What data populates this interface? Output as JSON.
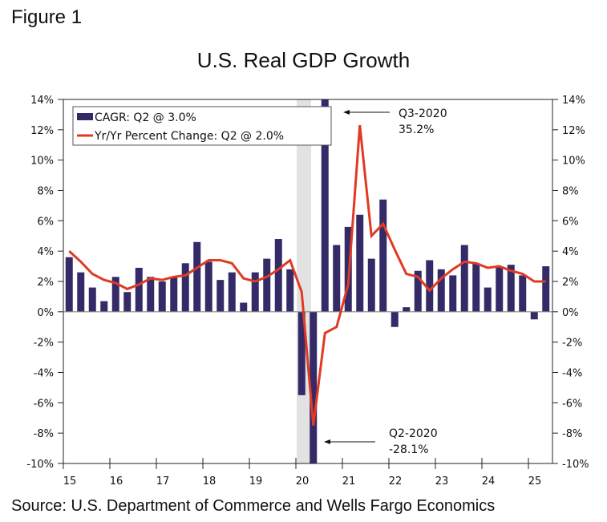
{
  "figure_label": "Figure 1",
  "source": "Source: U.S. Department of Commerce and Wells Fargo Economics",
  "colors": {
    "bar": "#342a68",
    "line": "#e03a24",
    "recession": "#e2e2e2",
    "axis": "#222222"
  },
  "chart_data": {
    "type": "bar",
    "title": "U.S. Real GDP Growth",
    "xlabel": "",
    "ylabel": "",
    "ylim": [
      -10,
      14
    ],
    "yticks": [
      14,
      12,
      10,
      8,
      6,
      4,
      2,
      0,
      -2,
      -4,
      -6,
      -8,
      -10
    ],
    "ytick_labels": [
      "14%",
      "12%",
      "10%",
      "8%",
      "6%",
      "4%",
      "2%",
      "0%",
      "-2%",
      "-4%",
      "-6%",
      "-8%",
      "-10%"
    ],
    "secondary_y": true,
    "xtick_labels": [
      "15",
      "16",
      "17",
      "18",
      "19",
      "20",
      "21",
      "22",
      "23",
      "24",
      "25"
    ],
    "grid": false,
    "legend_position": "top-left",
    "recession_shading": {
      "start": "2020Q1",
      "end": "2020Q2"
    },
    "categories": [
      "2015Q1",
      "2015Q2",
      "2015Q3",
      "2015Q4",
      "2016Q1",
      "2016Q2",
      "2016Q3",
      "2016Q4",
      "2017Q1",
      "2017Q2",
      "2017Q3",
      "2017Q4",
      "2018Q1",
      "2018Q2",
      "2018Q3",
      "2018Q4",
      "2019Q1",
      "2019Q2",
      "2019Q3",
      "2019Q4",
      "2020Q1",
      "2020Q2",
      "2020Q3",
      "2020Q4",
      "2021Q1",
      "2021Q2",
      "2021Q3",
      "2021Q4",
      "2022Q1",
      "2022Q2",
      "2022Q3",
      "2022Q4",
      "2023Q1",
      "2023Q2",
      "2023Q3",
      "2023Q4",
      "2024Q1",
      "2024Q2",
      "2024Q3",
      "2024Q4",
      "2025Q1",
      "2025Q2"
    ],
    "series": [
      {
        "name": "CAGR: Q2 @ 3.0%",
        "type": "bar",
        "values": [
          3.6,
          2.6,
          1.6,
          0.7,
          2.3,
          1.3,
          2.9,
          2.3,
          2.0,
          2.3,
          3.2,
          4.6,
          3.3,
          2.1,
          2.6,
          0.6,
          2.6,
          3.5,
          4.8,
          2.8,
          -5.5,
          -28.1,
          35.2,
          4.4,
          5.6,
          6.4,
          3.5,
          7.4,
          -1.0,
          0.3,
          2.7,
          3.4,
          2.8,
          2.4,
          4.4,
          3.2,
          1.6,
          3.0,
          3.1,
          2.4,
          -0.5,
          3.0
        ]
      },
      {
        "name": "Yr/Yr Percent Change: Q2 @ 2.0%",
        "type": "line",
        "values": [
          4.0,
          3.3,
          2.5,
          2.1,
          1.9,
          1.5,
          1.8,
          2.2,
          2.1,
          2.3,
          2.4,
          2.9,
          3.4,
          3.4,
          3.2,
          2.2,
          2.0,
          2.3,
          2.8,
          3.4,
          1.3,
          -7.5,
          -1.4,
          -1.0,
          1.8,
          12.3,
          5.0,
          5.8,
          4.1,
          2.5,
          2.3,
          1.4,
          2.2,
          2.8,
          3.3,
          3.2,
          2.9,
          3.0,
          2.7,
          2.5,
          2.0,
          2.0
        ]
      }
    ],
    "annotations": [
      {
        "target": "2020Q3",
        "line1": "Q3-2020",
        "line2": "35.2%"
      },
      {
        "target": "2020Q2",
        "line1": "Q2-2020",
        "line2": "-28.1%"
      }
    ]
  }
}
